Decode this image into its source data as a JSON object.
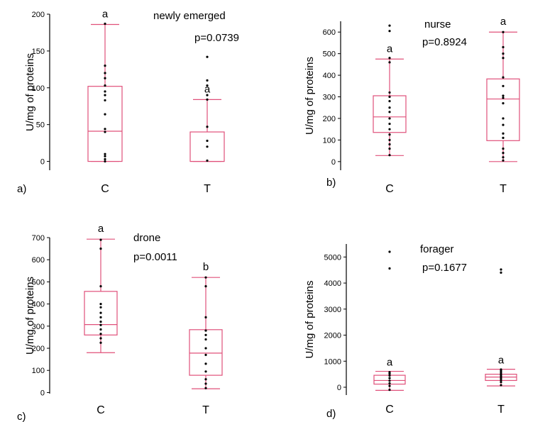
{
  "chart_data": [
    {
      "type": "box",
      "panel_label": "a)",
      "title": "newly emerged",
      "p_value": "p=0.0739",
      "ylabel": "U/mg of proteins",
      "ylim": [
        -12,
        200
      ],
      "yticks": [
        0,
        50,
        100,
        150,
        200
      ],
      "categories": [
        "C",
        "T"
      ],
      "series": [
        {
          "category": "C",
          "whisker_low": 0,
          "q1": 0,
          "median": 41,
          "q3": 102,
          "whisker_high": 186,
          "points": [
            0,
            3,
            7,
            10,
            40,
            44,
            64,
            83,
            90,
            95,
            103,
            113,
            120,
            130,
            187
          ],
          "letter": "a"
        },
        {
          "category": "T",
          "whisker_low": 0,
          "q1": 0,
          "median": 0,
          "q3": 40,
          "whisker_high": 84,
          "points": [
            1,
            20,
            28,
            47,
            84,
            90,
            103,
            110,
            142
          ],
          "letter": "a"
        }
      ]
    },
    {
      "type": "box",
      "panel_label": "b)",
      "title": "nurse",
      "p_value": "p=0.8924",
      "ylabel": "U/mg of proteins",
      "ylim": [
        -40,
        650
      ],
      "yticks": [
        0,
        100,
        200,
        300,
        400,
        500,
        600
      ],
      "categories": [
        "C",
        "T"
      ],
      "series": [
        {
          "category": "C",
          "whisker_low": 28,
          "q1": 135,
          "median": 207,
          "q3": 305,
          "whisker_high": 475,
          "points": [
            30,
            60,
            80,
            100,
            125,
            150,
            175,
            200,
            230,
            250,
            280,
            300,
            320,
            460,
            480,
            605,
            630
          ],
          "letter": "a"
        },
        {
          "category": "T",
          "whisker_low": 0,
          "q1": 97,
          "median": 290,
          "q3": 383,
          "whisker_high": 600,
          "points": [
            5,
            20,
            40,
            60,
            110,
            130,
            170,
            200,
            270,
            295,
            305,
            350,
            390,
            480,
            500,
            530,
            600
          ],
          "letter": "a"
        }
      ]
    },
    {
      "type": "box",
      "panel_label": "c)",
      "title": "drone",
      "p_value": "p=0.0011",
      "ylabel": "U/mg of proteins",
      "ylim": [
        -5,
        700
      ],
      "yticks": [
        0,
        100,
        200,
        300,
        400,
        500,
        600,
        700
      ],
      "categories": [
        "C",
        "T"
      ],
      "series": [
        {
          "category": "C",
          "whisker_low": 180,
          "q1": 260,
          "median": 307,
          "q3": 457,
          "whisker_high": 693,
          "points": [
            225,
            245,
            265,
            285,
            305,
            320,
            340,
            360,
            385,
            400,
            480,
            650,
            690
          ],
          "letter": "a"
        },
        {
          "category": "T",
          "whisker_low": 17,
          "q1": 78,
          "median": 178,
          "q3": 284,
          "whisker_high": 520,
          "points": [
            20,
            40,
            60,
            95,
            130,
            170,
            200,
            240,
            260,
            280,
            340,
            480,
            520
          ],
          "letter": "b"
        }
      ]
    },
    {
      "type": "box",
      "panel_label": "d)",
      "title": "forager",
      "p_value": "p=0.1677",
      "ylabel": "U/mg of proteins",
      "ylim": [
        -300,
        5500
      ],
      "yticks": [
        0,
        1000,
        2000,
        3000,
        4000,
        5000
      ],
      "categories": [
        "C",
        "T"
      ],
      "series": [
        {
          "category": "C",
          "whisker_low": -120,
          "q1": 120,
          "median": 260,
          "q3": 460,
          "whisker_high": 610,
          "points": [
            -100,
            50,
            150,
            250,
            350,
            450,
            520,
            580,
            4560,
            5200
          ],
          "letter": "a"
        },
        {
          "category": "T",
          "whisker_low": 50,
          "q1": 260,
          "median": 390,
          "q3": 500,
          "whisker_high": 690,
          "points": [
            80,
            200,
            280,
            350,
            420,
            480,
            550,
            620,
            680,
            4400,
            4520
          ],
          "letter": "a"
        }
      ]
    }
  ]
}
